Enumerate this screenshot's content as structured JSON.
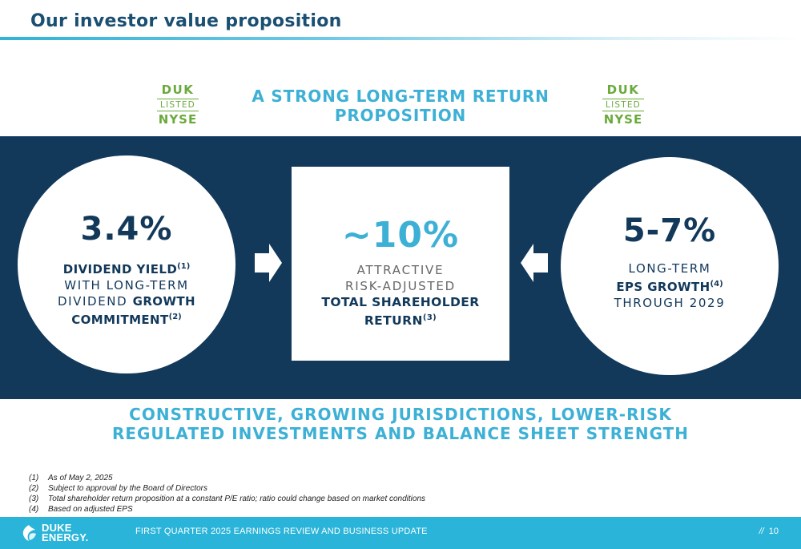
{
  "header": {
    "title": "Our investor value proposition"
  },
  "nyse_logo": {
    "ticker": "DUK",
    "listed": "LISTED",
    "exchange": "NYSE"
  },
  "headline": {
    "line1": "A STRONG LONG-TERM RETURN",
    "line2": "PROPOSITION"
  },
  "left_circle": {
    "value": "3.4%",
    "line1_bold": "DIVIDEND YIELD",
    "line1_sup": "(1)",
    "line2": "WITH LONG-TERM",
    "line3_regular": "DIVIDEND ",
    "line3_bold": "GROWTH",
    "line4_bold": "COMMITMENT",
    "line4_sup": "(2)"
  },
  "center_box": {
    "value": "~10%",
    "line1": "ATTRACTIVE",
    "line2": "RISK-ADJUSTED",
    "line3_bold": "TOTAL SHAREHOLDER",
    "line4_bold": "RETURN",
    "line4_sup": "(3)"
  },
  "right_circle": {
    "value": "5-7%",
    "line1": "LONG-TERM",
    "line2_bold": "EPS GROWTH",
    "line2_sup": "(4)",
    "line3": "THROUGH 2029"
  },
  "bottom_headline": {
    "line1": "CONSTRUCTIVE, GROWING JURISDICTIONS, LOWER-RISK",
    "line2": "REGULATED INVESTMENTS AND BALANCE SHEET STRENGTH"
  },
  "footnotes": [
    {
      "num": "(1)",
      "text": "As of May 2, 2025"
    },
    {
      "num": "(2)",
      "text": "Subject to approval by the Board of Directors"
    },
    {
      "num": "(3)",
      "text": "Total shareholder return proposition at a constant P/E ratio; ratio could change based on market conditions"
    },
    {
      "num": "(4)",
      "text": "Based on adjusted EPS"
    }
  ],
  "footer": {
    "logo_line1": "DUKE",
    "logo_line2": "ENERGY.",
    "text": "FIRST QUARTER 2025 EARNINGS REVIEW AND BUSINESS UPDATE",
    "slashes": "//",
    "page": "10"
  },
  "colors": {
    "navy": "#12385a",
    "accent_blue": "#3db0d6",
    "nyse_green": "#6aaa3c",
    "bar_blue": "#2ab4d9"
  }
}
